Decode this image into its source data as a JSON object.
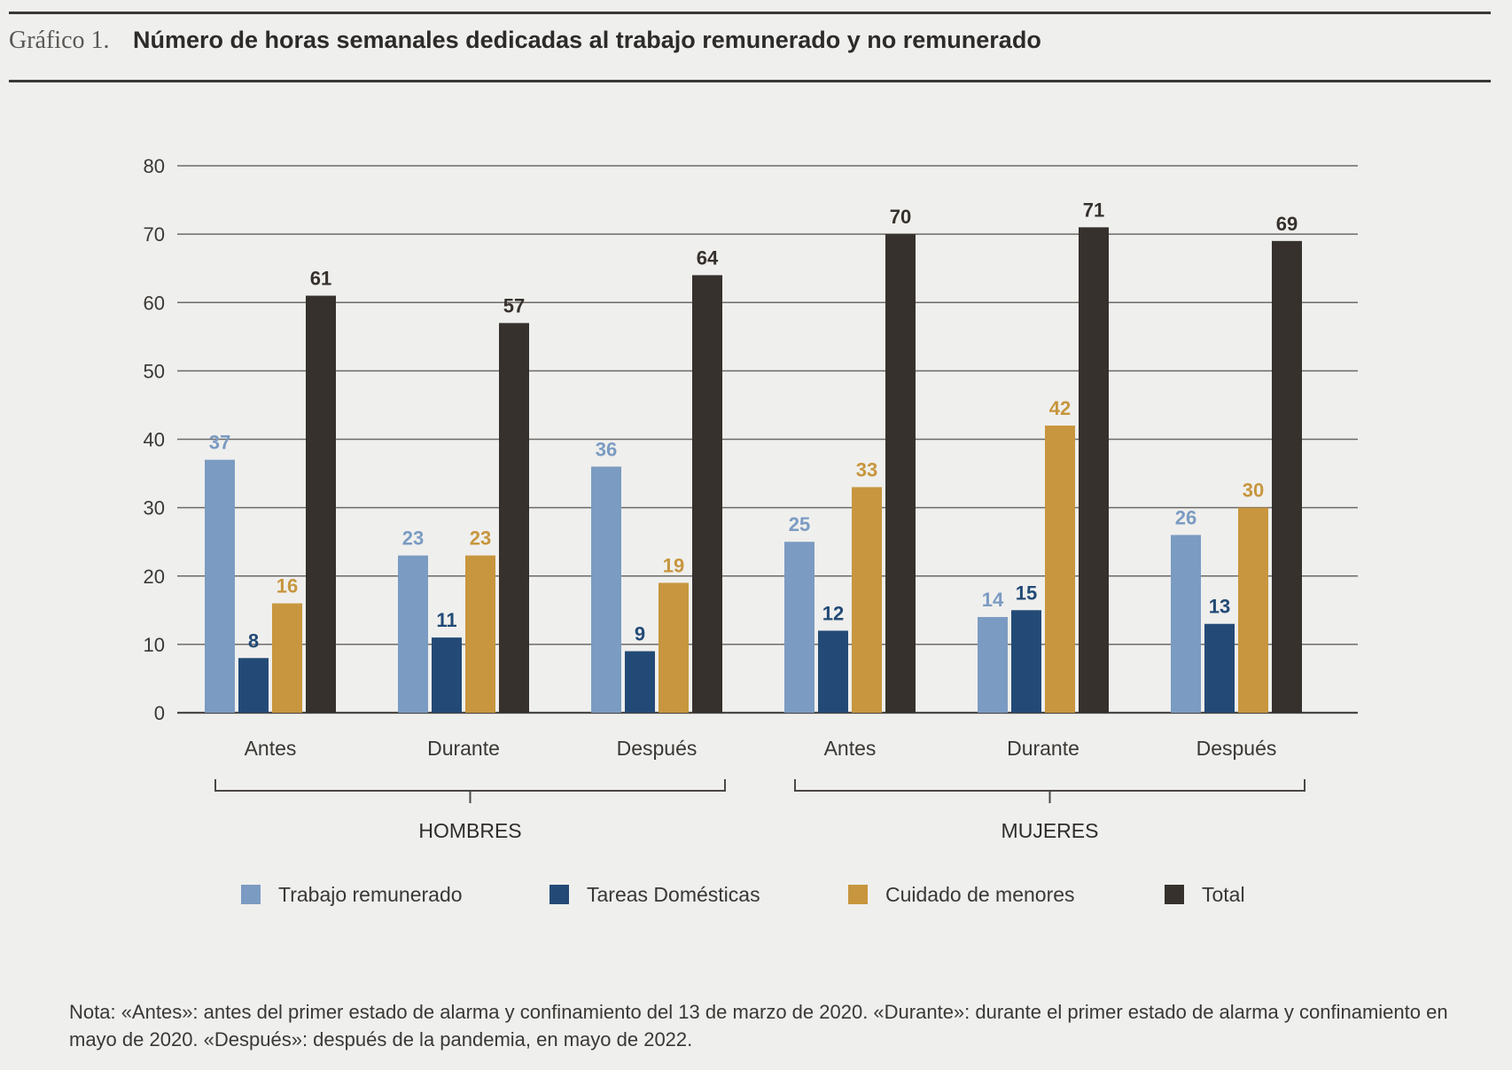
{
  "header": {
    "figure_label": "Gráfico 1.",
    "title": "Número de horas semanales dedicadas al trabajo remunerado y no remunerado"
  },
  "chart_data": {
    "type": "bar",
    "categories": [
      "Antes",
      "Durante",
      "Después",
      "Antes",
      "Durante",
      "Después"
    ],
    "groups": [
      {
        "label": "HOMBRES",
        "categories": [
          0,
          1,
          2
        ]
      },
      {
        "label": "MUJERES",
        "categories": [
          3,
          4,
          5
        ]
      }
    ],
    "series": [
      {
        "name": "Trabajo remunerado",
        "color": "#7b9bc2",
        "label_color": "#7b9bc2",
        "values": [
          37,
          23,
          36,
          25,
          14,
          26
        ]
      },
      {
        "name": "Tareas Domésticas",
        "color": "#234a76",
        "label_color": "#234a76",
        "values": [
          8,
          11,
          9,
          12,
          15,
          13
        ]
      },
      {
        "name": "Cuidado de menores",
        "color": "#c7963e",
        "label_color": "#c7963e",
        "values": [
          16,
          23,
          19,
          33,
          42,
          30
        ]
      },
      {
        "name": "Total",
        "color": "#36312d",
        "label_color": "#36312d",
        "values": [
          61,
          57,
          64,
          70,
          71,
          69
        ],
        "labels": [
          "61",
          "57",
          "64",
          "70",
          "71",
          "69"
        ]
      }
    ],
    "title": "Número de horas semanales dedicadas al trabajo remunerado y no remunerado",
    "xlabel": "",
    "ylabel": "",
    "ylim": [
      0,
      80
    ],
    "yticks": [
      0,
      10,
      20,
      30,
      40,
      50,
      60,
      70,
      80
    ],
    "grid": true,
    "legend_position": "bottom"
  },
  "note": "Nota: «Antes»: antes del primer estado de alarma y confinamiento del 13 de marzo de 2020. «Durante»: durante el primer estado de alarma y confinamiento en mayo de 2020. «Después»: después de la pandemia, en mayo de 2022."
}
